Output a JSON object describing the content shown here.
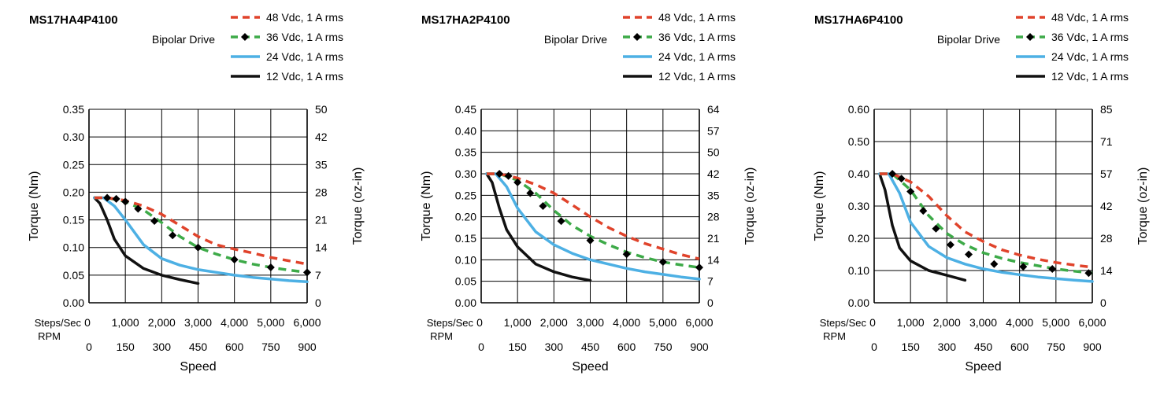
{
  "drive_label": "Bipolar Drive",
  "axis_labels": {
    "ylabel_left": "Torque (Nm)",
    "ylabel_right": "Torque (oz-in)",
    "xlabel": "Speed",
    "steps_label": "Steps/Sec",
    "rpm_label": "RPM"
  },
  "legend": [
    {
      "name": "48 Vdc, 1 A rms",
      "color": "#E0432B",
      "style": "dashed"
    },
    {
      "name": "36 Vdc, 1 A rms",
      "color": "#3DAA48",
      "style": "dashed-marker"
    },
    {
      "name": "24 Vdc, 1 A rms",
      "color": "#4DB0E4",
      "style": "solid"
    },
    {
      "name": "12 Vdc, 1 A rms",
      "color": "#111111",
      "style": "solid"
    }
  ],
  "chart_data": [
    {
      "type": "line",
      "title": "MS17HA4P4100",
      "xlabel": "Speed",
      "ylabel": "Torque (Nm)",
      "ylabel_right": "Torque (oz-in)",
      "steps_ticks": [
        "0",
        "1,000",
        "2,000",
        "3,000",
        "4,000",
        "5,000",
        "6,000"
      ],
      "rpm_ticks": [
        "0",
        "150",
        "300",
        "450",
        "600",
        "750",
        "900"
      ],
      "xlim": [
        0,
        6000
      ],
      "ylim": [
        0,
        0.35
      ],
      "y_ticks": [
        "0.00",
        "0.05",
        "0.10",
        "0.15",
        "0.20",
        "0.25",
        "0.30",
        "0.35"
      ],
      "y_right_ticks": [
        "0",
        "7",
        "14",
        "21",
        "28",
        "35",
        "42",
        "50"
      ],
      "series": [
        {
          "name": "48 Vdc, 1 A rms",
          "x": [
            150,
            500,
            1000,
            1500,
            2000,
            2500,
            3000,
            3500,
            4000,
            4500,
            5000,
            5500,
            6000
          ],
          "y": [
            0.19,
            0.19,
            0.185,
            0.175,
            0.16,
            0.14,
            0.12,
            0.105,
            0.097,
            0.09,
            0.082,
            0.076,
            0.07
          ]
        },
        {
          "name": "36 Vdc, 1 A rms",
          "x": [
            150,
            500,
            1000,
            1500,
            2000,
            2500,
            3000,
            3500,
            4000,
            4500,
            5000,
            5500,
            6000
          ],
          "y": [
            0.19,
            0.19,
            0.183,
            0.168,
            0.145,
            0.12,
            0.1,
            0.088,
            0.078,
            0.07,
            0.064,
            0.059,
            0.055
          ]
        },
        {
          "name": "24 Vdc, 1 A rms",
          "x": [
            150,
            400,
            700,
            1000,
            1500,
            2000,
            2500,
            3000,
            3500,
            4000,
            4500,
            5000,
            5500,
            6000
          ],
          "y": [
            0.19,
            0.19,
            0.175,
            0.15,
            0.105,
            0.08,
            0.068,
            0.06,
            0.055,
            0.05,
            0.046,
            0.043,
            0.04,
            0.038
          ]
        },
        {
          "name": "12 Vdc, 1 A rms",
          "x": [
            150,
            300,
            500,
            700,
            1000,
            1500,
            2000,
            2500,
            3000
          ],
          "y": [
            0.19,
            0.18,
            0.15,
            0.115,
            0.085,
            0.062,
            0.05,
            0.042,
            0.035
          ]
        }
      ],
      "markers_36": {
        "x": [
          500,
          750,
          1000,
          1350,
          1800,
          2300,
          3000,
          4000,
          5000,
          6000
        ],
        "y": [
          0.19,
          0.188,
          0.183,
          0.17,
          0.148,
          0.122,
          0.1,
          0.078,
          0.064,
          0.055
        ]
      }
    },
    {
      "type": "line",
      "title": "MS17HA2P4100",
      "xlabel": "Speed",
      "ylabel": "Torque (Nm)",
      "ylabel_right": "Torque (oz-in)",
      "steps_ticks": [
        "0",
        "1,000",
        "2,000",
        "3,000",
        "4,000",
        "5,000",
        "6,000"
      ],
      "rpm_ticks": [
        "0",
        "150",
        "300",
        "450",
        "600",
        "750",
        "900"
      ],
      "xlim": [
        0,
        6000
      ],
      "ylim": [
        0,
        0.45
      ],
      "y_ticks": [
        "0.00",
        "0.05",
        "0.10",
        "0.15",
        "0.20",
        "0.25",
        "0.30",
        "0.35",
        "0.40",
        "0.45"
      ],
      "y_right_ticks": [
        "0",
        "7",
        "14",
        "21",
        "28",
        "35",
        "42",
        "50",
        "57",
        "64"
      ],
      "series": [
        {
          "name": "48 Vdc, 1 A rms",
          "x": [
            150,
            500,
            1000,
            1500,
            2000,
            2500,
            3000,
            3500,
            4000,
            4500,
            5000,
            5500,
            6000
          ],
          "y": [
            0.3,
            0.3,
            0.29,
            0.275,
            0.255,
            0.228,
            0.2,
            0.175,
            0.155,
            0.138,
            0.125,
            0.112,
            0.102
          ]
        },
        {
          "name": "36 Vdc, 1 A rms",
          "x": [
            150,
            500,
            1000,
            1500,
            2000,
            2500,
            3000,
            3500,
            4000,
            4500,
            5000,
            5500,
            6000
          ],
          "y": [
            0.3,
            0.3,
            0.285,
            0.255,
            0.215,
            0.18,
            0.155,
            0.135,
            0.118,
            0.105,
            0.095,
            0.088,
            0.082
          ]
        },
        {
          "name": "24 Vdc, 1 A rms",
          "x": [
            150,
            400,
            700,
            1000,
            1500,
            2000,
            2500,
            3000,
            3500,
            4000,
            4500,
            5000,
            5500,
            6000
          ],
          "y": [
            0.3,
            0.3,
            0.27,
            0.22,
            0.165,
            0.135,
            0.115,
            0.1,
            0.09,
            0.08,
            0.072,
            0.066,
            0.06,
            0.055
          ]
        },
        {
          "name": "12 Vdc, 1 A rms",
          "x": [
            150,
            300,
            500,
            700,
            1000,
            1500,
            2000,
            2500,
            3000
          ],
          "y": [
            0.3,
            0.28,
            0.22,
            0.17,
            0.13,
            0.09,
            0.072,
            0.06,
            0.052
          ]
        }
      ],
      "markers_36": {
        "x": [
          500,
          750,
          1000,
          1350,
          1700,
          2200,
          3000,
          4000,
          5000,
          6000
        ],
        "y": [
          0.3,
          0.295,
          0.28,
          0.255,
          0.225,
          0.19,
          0.145,
          0.113,
          0.095,
          0.082
        ]
      }
    },
    {
      "type": "line",
      "title": "MS17HA6P4100",
      "xlabel": "Speed",
      "ylabel": "Torque (Nm)",
      "ylabel_right": "Torque (oz-in)",
      "steps_ticks": [
        "0",
        "1,000",
        "2,000",
        "3,000",
        "4,000",
        "5,000",
        "6,000"
      ],
      "rpm_ticks": [
        "0",
        "150",
        "300",
        "450",
        "600",
        "750",
        "900"
      ],
      "xlim": [
        0,
        6000
      ],
      "ylim": [
        0,
        0.6
      ],
      "y_ticks": [
        "0.00",
        "0.10",
        "0.20",
        "0.30",
        "0.40",
        "0.50",
        "0.60"
      ],
      "y_right_ticks": [
        "0",
        "14",
        "28",
        "42",
        "57",
        "71",
        "85"
      ],
      "series": [
        {
          "name": "48 Vdc, 1 A rms",
          "x": [
            150,
            500,
            1000,
            1500,
            2000,
            2500,
            3000,
            3500,
            4000,
            4500,
            5000,
            5500,
            6000
          ],
          "y": [
            0.4,
            0.4,
            0.375,
            0.33,
            0.27,
            0.22,
            0.19,
            0.165,
            0.148,
            0.135,
            0.125,
            0.117,
            0.11
          ]
        },
        {
          "name": "36 Vdc, 1 A rms",
          "x": [
            150,
            500,
            1000,
            1500,
            2000,
            2500,
            3000,
            3500,
            4000,
            4500,
            5000,
            5500,
            6000
          ],
          "y": [
            0.4,
            0.4,
            0.35,
            0.27,
            0.215,
            0.18,
            0.155,
            0.138,
            0.125,
            0.115,
            0.105,
            0.098,
            0.092
          ]
        },
        {
          "name": "24 Vdc, 1 A rms",
          "x": [
            150,
            400,
            700,
            1000,
            1500,
            2000,
            2500,
            3000,
            3500,
            4000,
            4500,
            5000,
            5500,
            6000
          ],
          "y": [
            0.4,
            0.4,
            0.34,
            0.25,
            0.175,
            0.14,
            0.12,
            0.105,
            0.095,
            0.087,
            0.08,
            0.075,
            0.07,
            0.066
          ]
        },
        {
          "name": "12 Vdc, 1 A rms",
          "x": [
            150,
            300,
            500,
            700,
            1000,
            1500,
            2000,
            2500
          ],
          "y": [
            0.4,
            0.35,
            0.24,
            0.17,
            0.13,
            0.1,
            0.085,
            0.07
          ]
        }
      ],
      "markers_36": {
        "x": [
          500,
          750,
          1000,
          1350,
          1700,
          2100,
          2600,
          3300,
          4100,
          4900,
          5900
        ],
        "y": [
          0.4,
          0.385,
          0.345,
          0.285,
          0.23,
          0.18,
          0.15,
          0.12,
          0.112,
          0.105,
          0.092
        ]
      }
    }
  ]
}
